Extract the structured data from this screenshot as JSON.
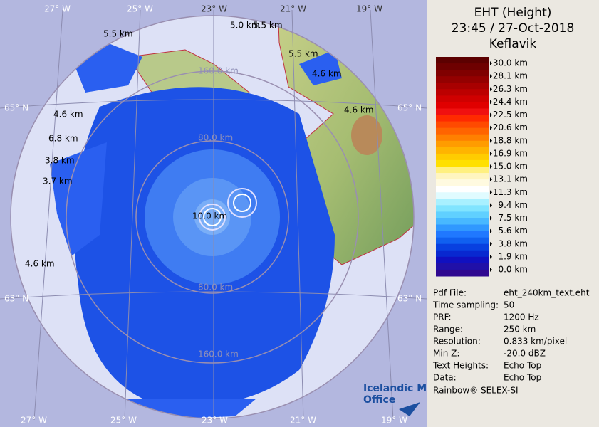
{
  "header": {
    "title": "EHT (Height)",
    "time": "23:45 / 27-Oct-2018",
    "site": "Keflavik"
  },
  "legend": {
    "labels": [
      "30.0 km",
      "28.1 km",
      "26.3 km",
      "24.4 km",
      "22.5 km",
      "20.6 km",
      "18.8 km",
      "16.9 km",
      "15.0 km",
      "13.1 km",
      "11.3 km",
      "9.4 km",
      "7.5 km",
      "5.6 km",
      "3.8 km",
      "1.9 km",
      "0.0 km"
    ]
  },
  "info": {
    "rows": [
      [
        "Pdf File:",
        "eht_240km_text.eht"
      ],
      [
        "Time sampling:",
        "50"
      ],
      [
        "PRF:",
        "1200 Hz"
      ],
      [
        "Range:",
        "250 km"
      ],
      [
        "Resolution:",
        "0.833 km/pixel"
      ],
      [
        "Min Z:",
        "-20.0 dBZ"
      ],
      [
        "Text Heights:",
        "Echo Top"
      ],
      [
        "Data:",
        "Echo Top"
      ]
    ]
  },
  "footer": "Rainbow® SELEX-SI",
  "logo": {
    "line1": "Icelandic Met",
    "line2": "Office"
  },
  "map": {
    "top_longitudes": [
      "27° W",
      "25° W",
      "23° W",
      "21° W",
      "19° W"
    ],
    "bottom_longitudes": [
      "27° W",
      "25° W",
      "23° W",
      "21° W",
      "19° W"
    ],
    "latitudes": [
      "65° N",
      "65° N",
      "63° N",
      "63° N"
    ],
    "range_labels": [
      "160.0 km",
      "80.0 km",
      "10.0 km",
      "80.0 km",
      "160.0 km"
    ],
    "height_labels": [
      "5.5 km",
      "5.0 km",
      "5.5 km",
      "5.5 km",
      "4.6 km",
      "4.6 km",
      "4.6 km",
      "6.8 km",
      "3.8 km",
      "3.7 km",
      "4.6 km"
    ]
  }
}
